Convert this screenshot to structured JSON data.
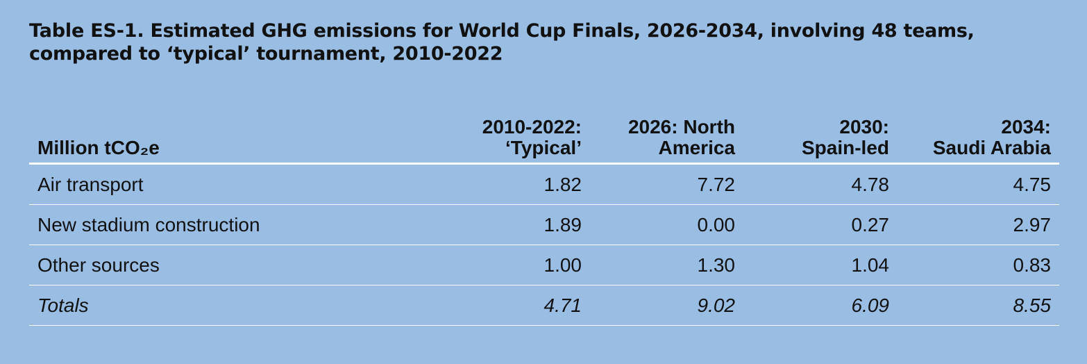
{
  "title": {
    "lead": "Table ES-1.",
    "text": "Estimated GHG emissions for World Cup Finals, 2026-2034, involving 48 teams, compared to ‘typical’ tournament, 2010-2022"
  },
  "table": {
    "header": {
      "unit": "Million tCO₂e",
      "columns": [
        {
          "line1": "2010-2022:",
          "line2": "‘Typical’"
        },
        {
          "line1": "2026: North",
          "line2": "America"
        },
        {
          "line1": "2030:",
          "line2": "Spain-led"
        },
        {
          "line1": "2034:",
          "line2": "Saudi Arabia"
        }
      ]
    },
    "rows": [
      {
        "label": "Air transport",
        "values": [
          "1.82",
          "7.72",
          "4.78",
          "4.75"
        ]
      },
      {
        "label": "New stadium construction",
        "values": [
          "1.89",
          "0.00",
          "0.27",
          "2.97"
        ]
      },
      {
        "label": "Other sources",
        "values": [
          "1.00",
          "1.30",
          "1.04",
          "0.83"
        ]
      }
    ],
    "totals": {
      "label": "Totals",
      "values": [
        "4.71",
        "9.02",
        "6.09",
        "8.55"
      ]
    }
  }
}
